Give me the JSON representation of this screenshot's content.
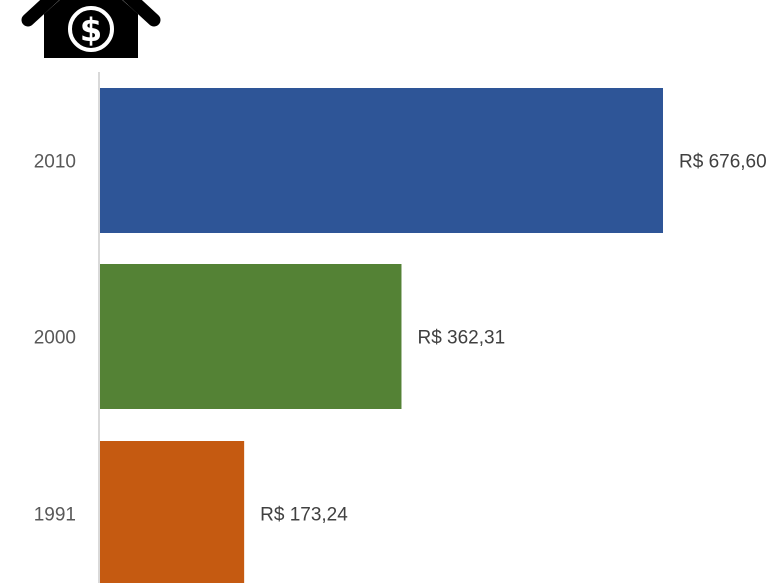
{
  "chart_data": {
    "type": "bar",
    "orientation": "horizontal",
    "categories": [
      "2010",
      "2000",
      "1991"
    ],
    "values": [
      676.6,
      362.31,
      173.24
    ],
    "value_labels": [
      "R$ 676,60",
      "R$ 362,31",
      "R$ 173,24"
    ],
    "colors": [
      "#2E5597",
      "#548235",
      "#C55A11"
    ],
    "title": "",
    "xlabel": "",
    "ylabel": "",
    "xlim": [
      0,
      676.6
    ],
    "grid": false,
    "legend": "none",
    "icon": "house-dollar-icon"
  }
}
